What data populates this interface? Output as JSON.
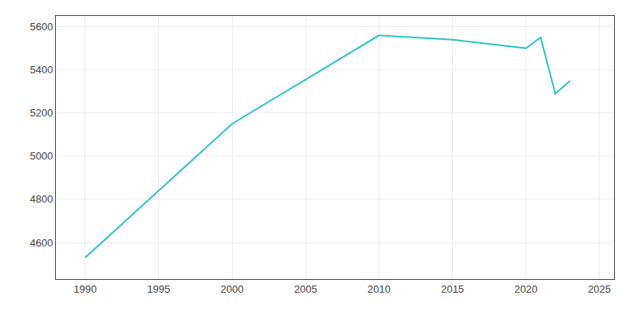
{
  "chart_data": {
    "type": "line",
    "x": [
      1990,
      2000,
      2010,
      2015,
      2020,
      2021,
      2022,
      2023
    ],
    "values": [
      4530,
      5150,
      5560,
      5540,
      5500,
      5550,
      5290,
      5350
    ],
    "color": "#2EC4C4",
    "xlim": [
      1988,
      2026
    ],
    "ylim": [
      4430,
      5650
    ],
    "xticks": [
      1990,
      1995,
      2000,
      2005,
      2010,
      2015,
      2020,
      2025
    ],
    "yticks": [
      4600,
      4800,
      5000,
      5200,
      5400,
      5600
    ],
    "grid": true
  }
}
